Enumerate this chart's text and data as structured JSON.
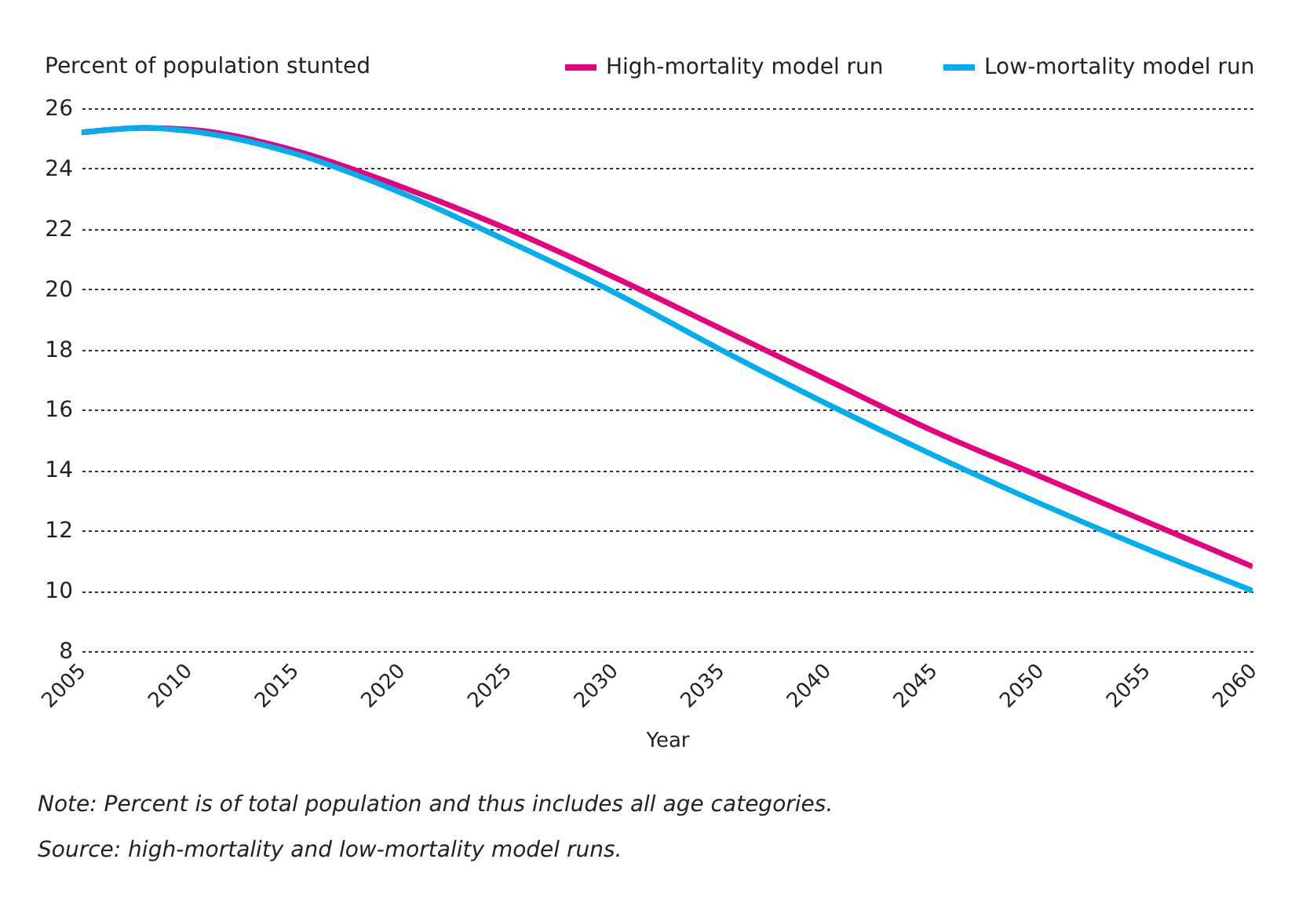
{
  "chart_data": {
    "type": "line",
    "ylabel": "Percent of population stunted",
    "xlabel": "Year",
    "x": [
      2005,
      2008,
      2010,
      2015,
      2020,
      2025,
      2030,
      2035,
      2040,
      2045,
      2050,
      2055,
      2060
    ],
    "series": [
      {
        "name": "High-mortality model run",
        "color": "#e6007e",
        "values": [
          25.2,
          25.35,
          25.3,
          24.6,
          23.4,
          22.0,
          20.4,
          18.7,
          17.0,
          15.3,
          13.8,
          12.3,
          10.8
        ]
      },
      {
        "name": "Low-mortality model run",
        "color": "#00adef",
        "values": [
          25.2,
          25.35,
          25.25,
          24.5,
          23.2,
          21.6,
          19.9,
          18.0,
          16.2,
          14.5,
          12.9,
          11.4,
          10.0
        ]
      }
    ],
    "xlim": [
      2005,
      2060
    ],
    "xticks": [
      2005,
      2010,
      2015,
      2020,
      2025,
      2030,
      2035,
      2040,
      2045,
      2050,
      2055,
      2060
    ],
    "ylim": [
      8,
      26
    ],
    "yticks": [
      8,
      10,
      12,
      14,
      16,
      18,
      20,
      22,
      24,
      26
    ],
    "grid": "y",
    "legend": "top right",
    "marker": "none",
    "line_style": "solid",
    "annotations": [
      "Note: Percent is of total population and thus includes all age categories.",
      "Source: high-mortality and low-mortality model runs."
    ]
  }
}
